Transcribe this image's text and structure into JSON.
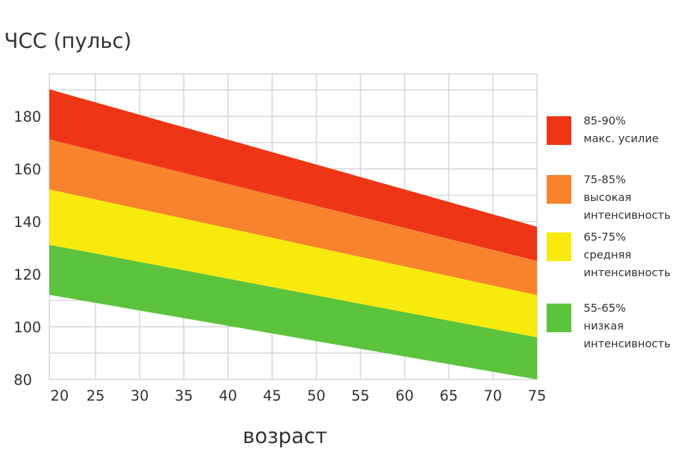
{
  "chart_data": {
    "type": "area",
    "title": "ЧСС (пульс)",
    "xlabel": "возраст",
    "ylabel": "",
    "x": [
      20,
      75
    ],
    "xlim": [
      20,
      75
    ],
    "ylim": [
      80,
      190
    ],
    "xticks": [
      20,
      25,
      30,
      35,
      40,
      45,
      50,
      55,
      60,
      65,
      70,
      75
    ],
    "yticks": [
      80,
      100,
      120,
      140,
      160,
      180
    ],
    "grid": true,
    "legend_position": "right",
    "boundaries": [
      {
        "values": [
          190,
          138
        ]
      },
      {
        "values": [
          171,
          125
        ]
      },
      {
        "values": [
          152,
          112
        ]
      },
      {
        "values": [
          131,
          96
        ]
      },
      {
        "values": [
          112,
          80
        ]
      }
    ],
    "series": [
      {
        "lines": [
          "85-90%",
          "макс. усилие"
        ],
        "color": "#ee3616",
        "upper": [
          190,
          138
        ],
        "lower": [
          171,
          125
        ]
      },
      {
        "lines": [
          "75-85%",
          "высокая",
          "интенсивность"
        ],
        "color": "#f7842c",
        "upper": [
          171,
          125
        ],
        "lower": [
          152,
          112
        ]
      },
      {
        "lines": [
          "65-75%",
          "средняя",
          "интенсивность"
        ],
        "color": "#f8ea0c",
        "upper": [
          152,
          112
        ],
        "lower": [
          131,
          96
        ]
      },
      {
        "lines": [
          "55-65%",
          "низкая",
          "интенсивность"
        ],
        "color": "#5bc43c",
        "upper": [
          131,
          96
        ],
        "lower": [
          112,
          80
        ]
      }
    ]
  }
}
